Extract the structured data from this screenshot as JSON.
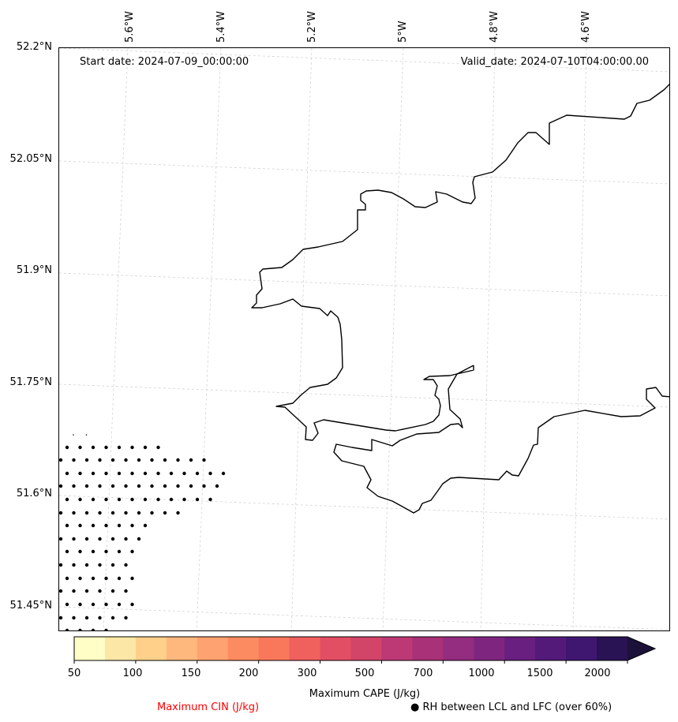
{
  "map": {
    "start_date": "Start date: 2024-07-09_00:00:00",
    "valid_date": "Valid_date: 2024-07-10T04:00:00.00",
    "lat_labels": [
      "52.2°N",
      "52.05°N",
      "51.9°N",
      "51.75°N",
      "51.6°N",
      "51.45°N"
    ],
    "lon_labels": [
      "5.6°W",
      "5.4°W",
      "5.2°W",
      "5°W",
      "4.8°W",
      "4.6°W"
    ],
    "coastline_color": "#000000",
    "gridline_color": "#d3d3d3",
    "dot_color": "#000000"
  },
  "colorbar": {
    "title": "Maximum CAPE (J/kg)",
    "tick_labels": [
      "50",
      "100",
      "150",
      "200",
      "300",
      "500",
      "700",
      "1000",
      "1500",
      "2000"
    ],
    "colors": [
      "#fefec6",
      "#fde7a6",
      "#fed089",
      "#feb87d",
      "#fea271",
      "#fd8b61",
      "#f9785c",
      "#f0605d",
      "#e24e63",
      "#d24468",
      "#bd3976",
      "#a93177",
      "#942c7f",
      "#7e267f",
      "#681f7f",
      "#531a7a",
      "#3f1770",
      "#291354",
      "#1b1139"
    ],
    "extend": "max"
  },
  "legend": {
    "cin_label": "Maximum CIN (J/kg)",
    "cin_color": "#ff0000",
    "rh_label": "● RH between LCL and LFC (over 60%)"
  }
}
